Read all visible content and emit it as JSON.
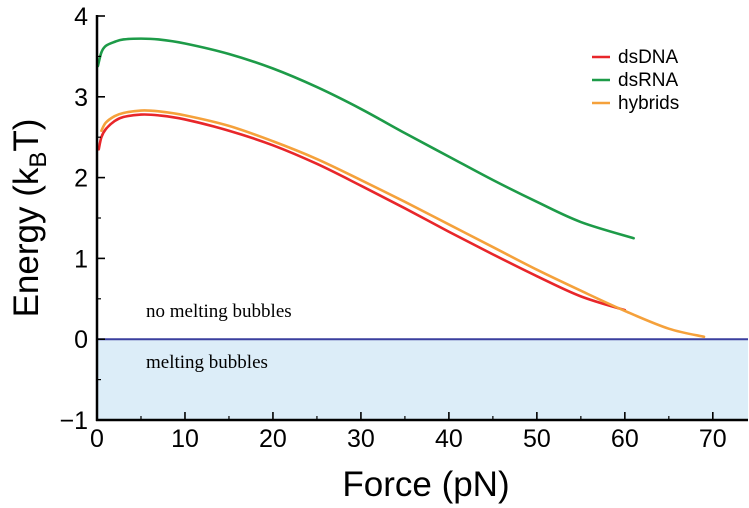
{
  "chart_data": {
    "type": "line",
    "xlabel": "Force (pN)",
    "ylabel": {
      "main": "Energy (k",
      "sub": "B",
      "tail": "T)"
    },
    "xlim": [
      0,
      74
    ],
    "ylim": [
      -1,
      4
    ],
    "xticks": [
      0,
      10,
      20,
      30,
      40,
      50,
      60,
      70
    ],
    "yticks": [
      -1,
      0,
      1,
      2,
      3,
      4
    ],
    "xtick_labels": [
      "0",
      "10",
      "20",
      "30",
      "40",
      "50",
      "60",
      "70"
    ],
    "ytick_labels": [
      "−1",
      "0",
      "1",
      "2",
      "3",
      "4"
    ],
    "legend_position": "top-right",
    "series": [
      {
        "name": "dsDNA",
        "color": "#e8262a",
        "x": [
          0.2,
          0.5,
          1,
          2,
          3,
          5,
          7,
          10,
          15,
          20,
          25,
          30,
          35,
          40,
          45,
          50,
          55,
          60
        ],
        "y": [
          2.35,
          2.5,
          2.6,
          2.7,
          2.75,
          2.78,
          2.77,
          2.72,
          2.58,
          2.4,
          2.17,
          1.9,
          1.62,
          1.33,
          1.05,
          0.78,
          0.53,
          0.36
        ]
      },
      {
        "name": "dsRNA",
        "color": "#1d9b48",
        "x": [
          0.1,
          0.5,
          1,
          2,
          3,
          5,
          7,
          10,
          15,
          20,
          25,
          30,
          35,
          40,
          45,
          50,
          55,
          61
        ],
        "y": [
          3.38,
          3.55,
          3.63,
          3.68,
          3.71,
          3.72,
          3.71,
          3.66,
          3.53,
          3.35,
          3.12,
          2.85,
          2.55,
          2.26,
          1.97,
          1.7,
          1.45,
          1.25
        ]
      },
      {
        "name": "hybrids",
        "color": "#f5a13b",
        "x": [
          0.5,
          1,
          2,
          3,
          5,
          7,
          10,
          15,
          20,
          25,
          30,
          35,
          40,
          45,
          50,
          55,
          60,
          65,
          69
        ],
        "y": [
          2.58,
          2.68,
          2.76,
          2.8,
          2.83,
          2.82,
          2.77,
          2.64,
          2.45,
          2.23,
          1.97,
          1.7,
          1.42,
          1.14,
          0.86,
          0.6,
          0.35,
          0.13,
          0.03
        ]
      }
    ],
    "threshold_line": {
      "y": 0,
      "color": "#3a3f9e"
    },
    "shaded_region": {
      "y_from": -1,
      "y_to": 0,
      "color": "#dcedf8"
    },
    "annotations": {
      "above": "no melting bubbles",
      "below": "melting bubbles"
    }
  }
}
